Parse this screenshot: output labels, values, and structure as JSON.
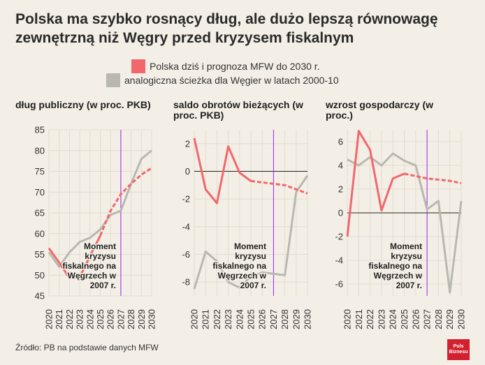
{
  "title": "Polska ma szybko rosnący dług, ale dużo lepszą równowagę zewnętrzną niż Węgry przed kryzysem fiskalnym",
  "legend": {
    "poland": {
      "label": "Polska dziś i prognoza MFW do 2030 r.",
      "color": "#f2676b"
    },
    "hungary": {
      "label": "analogiczna ścieżka dla Węgier w latach 2000-10",
      "color": "#b9b8b0"
    }
  },
  "source": "Źródło: PB na podstawie danych MFW",
  "logo": {
    "line1": "Puls",
    "line2": "Biznesu"
  },
  "colors": {
    "background": "#f3efe6",
    "grid": "#e2dcd0",
    "crisis_line": "#a020f0",
    "zero_line": "#222222"
  },
  "chart_data": [
    {
      "type": "line",
      "title": "dług publiczny (w proc. PKB)",
      "x": [
        2020,
        2021,
        2022,
        2023,
        2024,
        2025,
        2026,
        2027,
        2028,
        2029,
        2030
      ],
      "ylim": [
        45,
        85
      ],
      "yticks": [
        45,
        50,
        55,
        60,
        65,
        70,
        75,
        80,
        85
      ],
      "crisis_year": 2027,
      "annotation": [
        "Moment",
        "kryzysu",
        "fiskalnego na",
        "Węgrzech w",
        "2007 r."
      ],
      "series": [
        {
          "name": "Polska dziś i prognoza MFW do 2030 r.",
          "values": [
            56.5,
            53,
            49.3,
            49.5,
            54.6,
            59.5,
            65.5,
            69.5,
            72,
            74.2,
            75.8
          ],
          "forecast_from": 2025
        },
        {
          "name": "analogiczna ścieżka dla Węgier w latach 2000-10",
          "values": [
            55.5,
            52,
            55.5,
            58,
            59,
            61,
            64.5,
            65.5,
            72,
            78,
            80
          ]
        }
      ]
    },
    {
      "type": "line",
      "title": "saldo obrotów bieżących (w proc. PKB)",
      "x": [
        2020,
        2021,
        2022,
        2023,
        2024,
        2025,
        2026,
        2027,
        2028,
        2029,
        2030
      ],
      "ylim": [
        -9,
        3
      ],
      "yticks": [
        -8,
        -6,
        -4,
        -2,
        0,
        2
      ],
      "crisis_year": 2027,
      "annotation": [
        "Moment",
        "kryzysu",
        "fiskalnego na",
        "Węgrzech w",
        "2007 r."
      ],
      "series": [
        {
          "name": "Polska dziś i prognoza MFW do 2030 r.",
          "values": [
            2.4,
            -1.3,
            -2.3,
            1.8,
            -0.1,
            -0.7,
            -0.8,
            -0.9,
            -1.0,
            -1.3,
            -1.6
          ],
          "forecast_from": 2025
        },
        {
          "name": "analogiczna ścieżka dla Węgier w latach 2000-10",
          "values": [
            -8.5,
            -5.8,
            -6.5,
            -8.0,
            -8.4,
            -7.6,
            -7.3,
            -7.4,
            -7.5,
            -1.5,
            -0.3
          ]
        }
      ]
    },
    {
      "type": "line",
      "title": "wzrost gospodarczy (w proc.)",
      "x": [
        2020,
        2021,
        2022,
        2023,
        2024,
        2025,
        2026,
        2027,
        2028,
        2029,
        2030
      ],
      "ylim": [
        -7,
        7
      ],
      "yticks": [
        -6,
        -4,
        -2,
        0,
        2,
        4,
        6
      ],
      "crisis_year": 2027,
      "annotation": [
        "Moment",
        "kryzysu",
        "fiskalnego na",
        "Węgrzech w",
        "2007 r."
      ],
      "series": [
        {
          "name": "Polska dziś i prognoza MFW do 2030 r.",
          "values": [
            -2.0,
            6.9,
            5.3,
            0.2,
            2.9,
            3.3,
            3.1,
            2.9,
            2.8,
            2.7,
            2.5
          ],
          "forecast_from": 2025
        },
        {
          "name": "analogiczna ścieżka dla Węgier w latach 2000-10",
          "values": [
            4.5,
            4.0,
            4.7,
            4.0,
            5.0,
            4.4,
            4.0,
            0.3,
            1.0,
            -6.7,
            1.0
          ]
        }
      ]
    }
  ]
}
